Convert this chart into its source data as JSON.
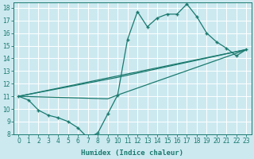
{
  "xlabel": "Humidex (Indice chaleur)",
  "bg_color": "#cce9f0",
  "grid_color": "#ffffff",
  "line_color": "#1a7a6e",
  "xlim": [
    -0.5,
    23.5
  ],
  "ylim": [
    8,
    18.4
  ],
  "yticks": [
    8,
    9,
    10,
    11,
    12,
    13,
    14,
    15,
    16,
    17,
    18
  ],
  "xticks": [
    0,
    1,
    2,
    3,
    4,
    5,
    6,
    7,
    8,
    9,
    10,
    11,
    12,
    13,
    14,
    15,
    16,
    17,
    18,
    19,
    20,
    21,
    22,
    23
  ],
  "line1_x": [
    0,
    1,
    2,
    3,
    4,
    5,
    6,
    7,
    8,
    9,
    10,
    11,
    12,
    13,
    14,
    15,
    16,
    17,
    18,
    19,
    20,
    21,
    22,
    23
  ],
  "line1_y": [
    11.0,
    10.7,
    9.9,
    9.5,
    9.3,
    9.0,
    8.5,
    7.7,
    8.1,
    9.6,
    11.1,
    15.5,
    17.7,
    16.5,
    17.2,
    17.5,
    17.5,
    18.3,
    17.3,
    16.0,
    15.3,
    14.8,
    14.2,
    14.7
  ],
  "line2_x": [
    0,
    9,
    10,
    22,
    23
  ],
  "line2_y": [
    11.0,
    10.8,
    11.1,
    14.4,
    14.7
  ],
  "line3_x": [
    0,
    23
  ],
  "line3_y": [
    11.0,
    14.7
  ],
  "line4_x": [
    0,
    10,
    23
  ],
  "line4_y": [
    11.0,
    12.5,
    14.7
  ]
}
